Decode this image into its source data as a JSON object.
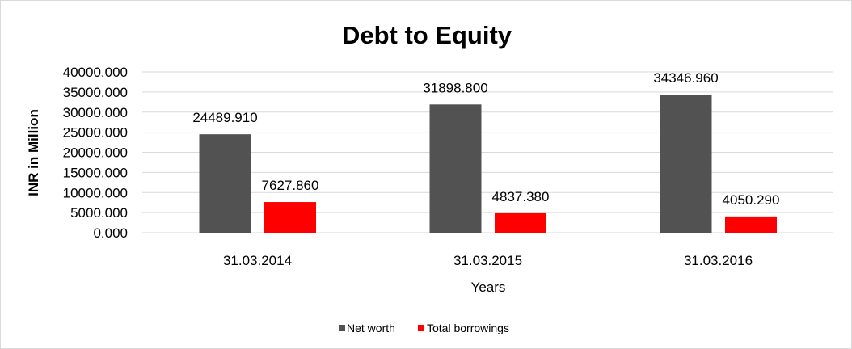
{
  "chart_data": {
    "type": "bar",
    "title": "Debt to Equity",
    "xlabel": "Years",
    "ylabel": "INR in Million",
    "categories": [
      "31.03.2014",
      "31.03.2015",
      "31.03.2016"
    ],
    "series": [
      {
        "name": "Net worth",
        "color": "#525252",
        "values": [
          24489.91,
          31898.8,
          34346.96
        ],
        "labels": [
          "24489.910",
          "31898.800",
          "34346.960"
        ]
      },
      {
        "name": "Total borrowings",
        "color": "#ff0000",
        "values": [
          7627.86,
          4837.38,
          4050.29
        ],
        "labels": [
          "7627.860",
          "4837.380",
          "4050.290"
        ]
      }
    ],
    "ylim": [
      0,
      40000
    ],
    "yticks": [
      "0.000",
      "5000.000",
      "10000.000",
      "15000.000",
      "20000.000",
      "25000.000",
      "30000.000",
      "35000.000",
      "40000.000"
    ],
    "grid": true,
    "legend": "bottom"
  }
}
